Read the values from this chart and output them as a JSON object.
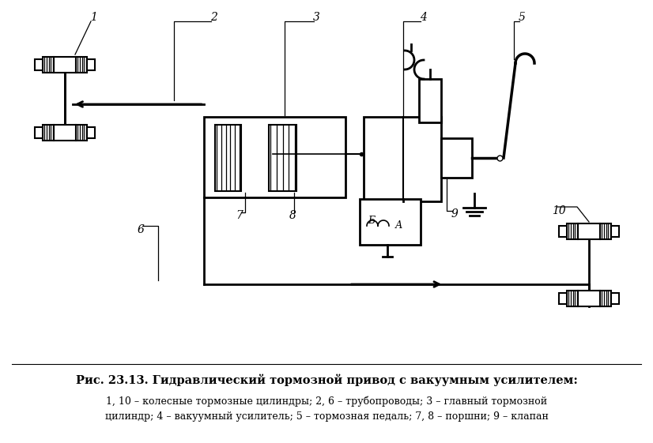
{
  "title": "Рис. 23.13. Гидравлический тормозной привод с вакуумным усилителем:",
  "caption_line1": "1, 10 – колесные тормозные цилиндры; 2, 6 – трубопроводы; 3 – главный тормозной",
  "caption_line2": "цилиндр; 4 – вакуумный усилитель; 5 – тормозная педаль; 7, 8 – поршни; 9 – клапан",
  "bg_color": "#ffffff",
  "lw": 1.5,
  "lwt": 2.0
}
